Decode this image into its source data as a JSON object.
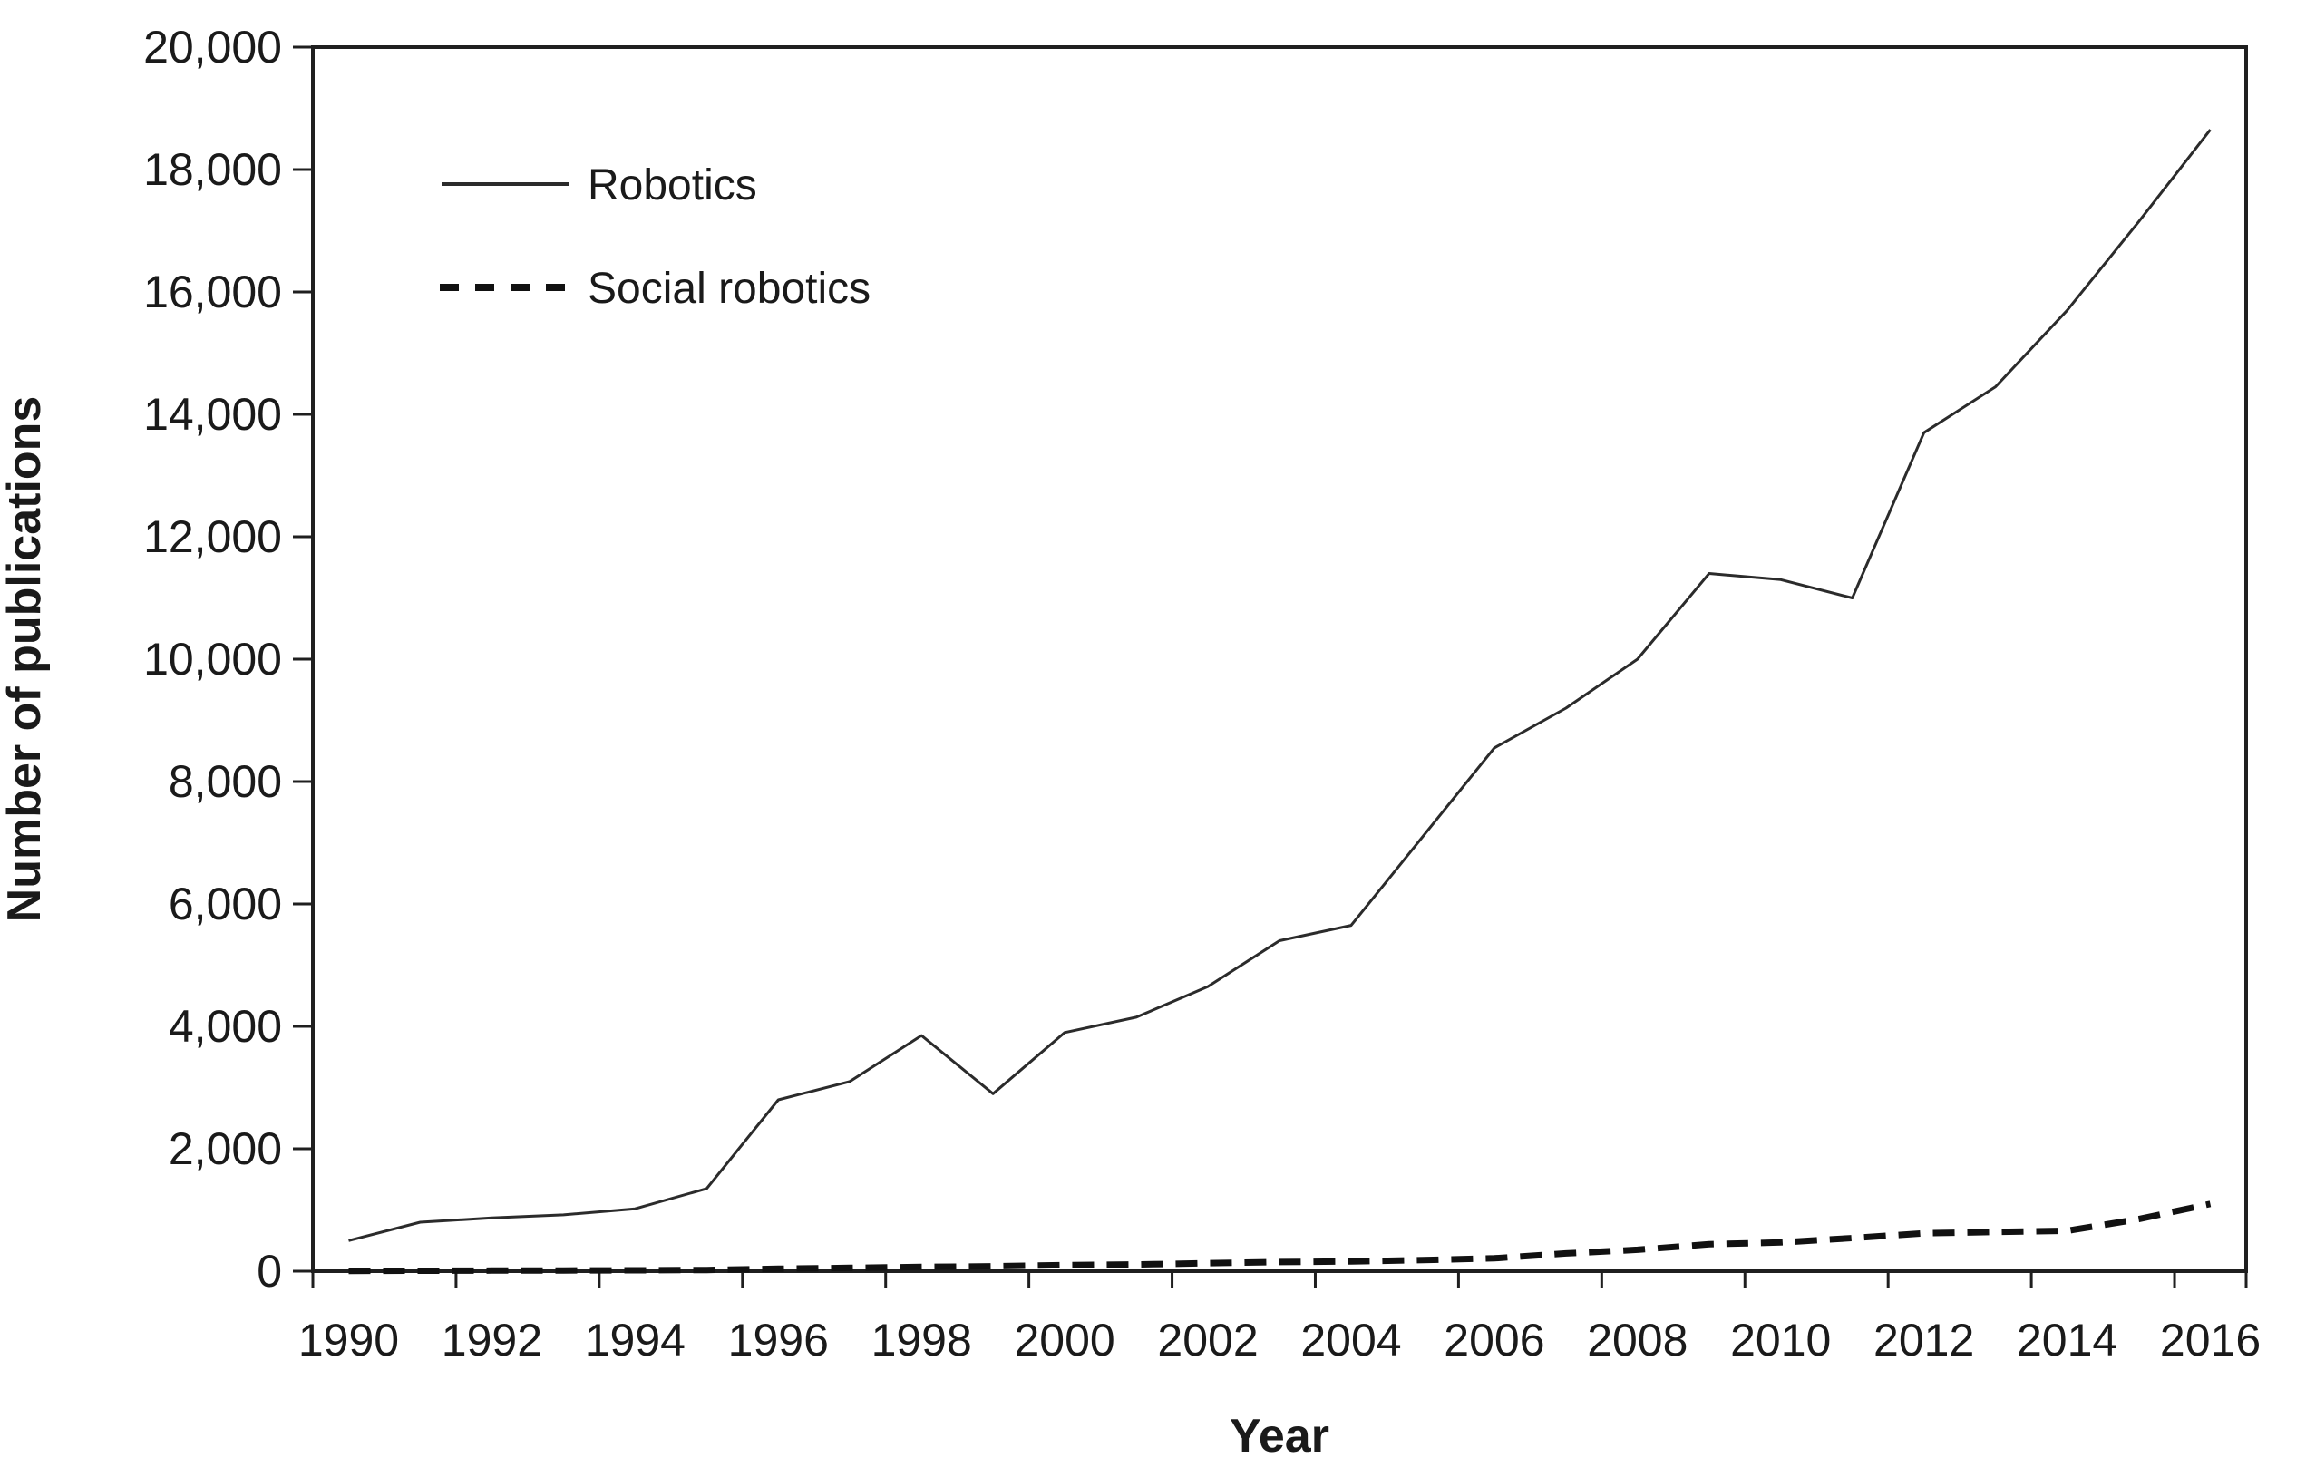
{
  "figure": {
    "background": "#ffffff",
    "text_color": "#1a1a1a",
    "axis_color": "#1f1f1f",
    "robotics_line_color": "#2b2b2b",
    "social_line_color": "#111111"
  },
  "chart_data": {
    "type": "line",
    "title": "",
    "xlabel": "Year",
    "ylabel": "Number of publications",
    "x": [
      1990,
      1991,
      1992,
      1993,
      1994,
      1995,
      1996,
      1997,
      1998,
      1999,
      2000,
      2001,
      2002,
      2003,
      2004,
      2005,
      2006,
      2007,
      2008,
      2009,
      2010,
      2011,
      2012,
      2013,
      2014,
      2015,
      2016
    ],
    "series": [
      {
        "name": "Robotics",
        "style": "solid",
        "values": [
          500,
          800,
          870,
          920,
          1020,
          1350,
          2800,
          3100,
          3850,
          2900,
          3900,
          4150,
          4650,
          5400,
          5650,
          7100,
          8550,
          9200,
          10000,
          11400,
          11300,
          11000,
          13700,
          14450,
          15700,
          17150,
          18650
        ]
      },
      {
        "name": "Social robotics",
        "style": "dashed",
        "values": [
          5,
          8,
          10,
          12,
          15,
          20,
          40,
          55,
          70,
          80,
          100,
          110,
          130,
          150,
          160,
          180,
          210,
          290,
          350,
          440,
          470,
          540,
          620,
          640,
          660,
          850,
          1100
        ]
      }
    ],
    "ylim": [
      0,
      20000
    ],
    "ytick_interval": 2000,
    "ytick_labels": [
      "0",
      "2,000",
      "4,000",
      "6,000",
      "8,000",
      "10,000",
      "12,000",
      "14,000",
      "16,000",
      "18,000",
      "20,000"
    ],
    "xtick_labels": [
      "1990",
      "1992",
      "1994",
      "1996",
      "1998",
      "2000",
      "2002",
      "2004",
      "2006",
      "2008",
      "2010",
      "2012",
      "2014",
      "2016"
    ],
    "xtick_label_interval": 2,
    "grid": "off",
    "legend_position": "top-left-inside"
  }
}
